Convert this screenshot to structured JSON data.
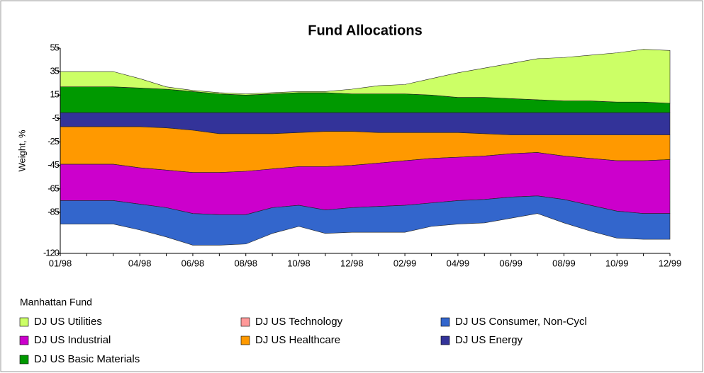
{
  "chart_data": {
    "type": "stacked_area",
    "title": "Fund Allocations",
    "y_label": "Weight, %",
    "legend_title": "Manhattan Fund",
    "categories": [
      "01/98",
      null,
      null,
      "04/98",
      null,
      "06/98",
      null,
      "08/98",
      null,
      "10/98",
      null,
      "12/98",
      null,
      "02/99",
      null,
      "04/99",
      null,
      "06/99",
      null,
      "08/99",
      null,
      "10/99",
      null,
      "12/99"
    ],
    "ylim": [
      -120,
      55
    ],
    "yticks": [
      55,
      35,
      15,
      -5,
      -25,
      -45,
      -65,
      -85,
      -120
    ],
    "series": [
      {
        "name": "DJ US Utilities",
        "color": "#ccff66",
        "values": [
          13,
          13,
          13,
          8,
          2,
          1,
          1,
          1,
          1,
          1,
          1,
          4,
          7,
          8,
          14,
          21,
          25,
          30,
          35,
          37,
          39,
          42,
          45,
          45
        ]
      },
      {
        "name": "DJ US Technology",
        "color": "#ff9999",
        "values": [
          0,
          0,
          0,
          0,
          0,
          0,
          0,
          0,
          0,
          0,
          0,
          0,
          0,
          0,
          0,
          0,
          0,
          0,
          0,
          0,
          0,
          0,
          0,
          0
        ]
      },
      {
        "name": "DJ US Consumer, Non-Cycl",
        "color": "#3366cc",
        "values": [
          -20,
          -20,
          -20,
          -22,
          -25,
          -27,
          -26,
          -25,
          -22,
          -18,
          -20,
          -21,
          -22,
          -23,
          -20,
          -20,
          -20,
          -18,
          -15,
          -20,
          -22,
          -23,
          -22,
          -22
        ]
      },
      {
        "name": "DJ US Industrial",
        "color": "#cc00cc",
        "values": [
          -31,
          -31,
          -31,
          -31,
          -32,
          -35,
          -36,
          -37,
          -33,
          -33,
          -37,
          -36,
          -37,
          -38,
          -38,
          -37,
          -37,
          -37,
          -37,
          -37,
          -40,
          -43,
          -45,
          -46
        ]
      },
      {
        "name": "DJ US Healthcare",
        "color": "#ff9900",
        "values": [
          -32,
          -32,
          -32,
          -35,
          -36,
          -36,
          -33,
          -32,
          -30,
          -29,
          -30,
          -29,
          -26,
          -24,
          -22,
          -21,
          -19,
          -16,
          -15,
          -18,
          -20,
          -22,
          -22,
          -21
        ]
      },
      {
        "name": "DJ US Energy",
        "color": "#333399",
        "values": [
          -12,
          -12,
          -12,
          -12,
          -13,
          -15,
          -18,
          -18,
          -18,
          -17,
          -16,
          -16,
          -17,
          -17,
          -17,
          -17,
          -18,
          -19,
          -19,
          -19,
          -19,
          -19,
          -19,
          -19
        ]
      },
      {
        "name": "DJ US Basic Materials",
        "color": "#009900",
        "values": [
          22,
          22,
          22,
          21,
          20,
          18,
          16,
          15,
          16,
          17,
          17,
          16,
          16,
          16,
          15,
          13,
          13,
          12,
          11,
          10,
          10,
          9,
          9,
          8
        ]
      }
    ]
  }
}
